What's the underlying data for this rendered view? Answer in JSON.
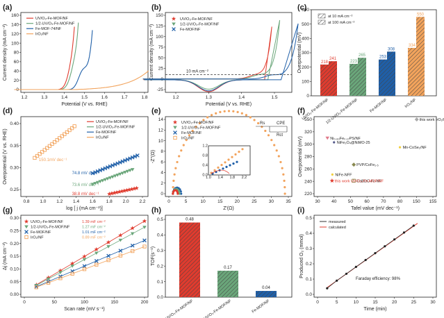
{
  "colors": {
    "red": "#e03b2e",
    "green": "#6aa67a",
    "blue": "#1f5fa8",
    "orange": "#f2a35c",
    "grey": "#aaaaaa",
    "gold": "#f2cf3b",
    "olive": "#8a8a52"
  },
  "panels": [
    {
      "label": "(a)",
      "type": "line",
      "xlabel": "Potential (V vs. RHE)",
      "ylabel": "Current density (mA cm⁻²)",
      "xticks": [
        "1.2",
        "1.3",
        "1.4",
        "1.5",
        "1.6",
        "1.7",
        "1.8"
      ],
      "yticks": [
        "0",
        "20",
        "40",
        "60",
        "80",
        "100",
        "120",
        "140",
        "160"
      ],
      "legend": [
        "UV/O₃-Fe-MOF/NF",
        "1/2-UV/O₃-Fe-MOF/NF",
        "Fe-MOF-74/NF",
        "IrO₂/NF"
      ]
    },
    {
      "label": "(b)",
      "type": "line",
      "xlabel": "Potential (V vs. RHE)",
      "ylabel": "Current density (mA cm⁻²)",
      "xticks": [
        "1.2",
        "1.3",
        "1.4",
        "1.5"
      ],
      "yticks": [
        "-25",
        "0",
        "25",
        "50",
        "75",
        "100",
        "125",
        "150"
      ],
      "legend": [
        "UV/O₃-Fe-MOF/NF",
        "1/2-UV/O₃-Fe-MOF/NF",
        "Fe-MOF/NF"
      ],
      "annotation": "10 mA cm⁻²"
    },
    {
      "label": "(c)",
      "type": "bar",
      "ylabel": "Overpotential (mV)",
      "categories": [
        "UV/O₃-Fe-MOF/NF",
        "1/2-UV/O₃-Fe-MOF/NF",
        "Fe-MOF/NF",
        "IrO₂/NF"
      ],
      "at10": [
        218,
        223,
        253,
        334
      ],
      "at100": [
        241,
        265,
        308,
        550
      ],
      "yticks": [
        "0",
        "100",
        "200",
        "300",
        "400",
        "500",
        "600"
      ],
      "legend": [
        "at 10 mA cm⁻²",
        "at 100 mA cm⁻²"
      ]
    },
    {
      "label": "(d)",
      "type": "tafel",
      "xlabel": "log [ j (mA cm⁻²)]",
      "ylabel": "Overpotential (V vs. RHE)",
      "xticks": [
        "0.8",
        "1.0",
        "1.2",
        "1.4",
        "1.6",
        "1.8",
        "2.0",
        "2.2"
      ],
      "yticks": [
        "0.25",
        "0.30",
        "0.35",
        "0.40"
      ],
      "legend": [
        "UV/O₃-Fe-MOF/NF",
        "1/2-UV/O₃-Fe-MOF/NF",
        "Fe-MOF/NF",
        "IrO₂/NF"
      ],
      "slopes": [
        "150.1mV dec⁻¹",
        "74.8 mV dec⁻¹",
        "73.6 mV dec⁻¹",
        "38.8 mV dec⁻¹"
      ]
    },
    {
      "label": "(e)",
      "type": "nyquist",
      "xlabel": "Z'(Ω)",
      "ylabel": "-Z''(Ω)",
      "xticks": [
        "0",
        "5",
        "10",
        "15",
        "20",
        "25",
        "30",
        "35"
      ],
      "yticks": [
        "0",
        "2",
        "4",
        "6",
        "8",
        "10",
        "12",
        "14"
      ],
      "legend": [
        "UV/O₃-Fe-MOF/NF",
        "1/2-UV/O₃-Fe-MOF/NF",
        "Fe-MOF/NF",
        "IrO₂/NF"
      ],
      "circuit": {
        "rs": "Rs",
        "cpe": "CPE",
        "rct": "Rct"
      },
      "inset": {
        "xticks": [
          "1.0",
          "1.2",
          "1.4",
          "1.6",
          "1.8",
          "2.0",
          "2.2",
          "2.4"
        ],
        "yticks": [
          "0.0",
          "0.2",
          "0.4",
          "0.6",
          "0.8",
          "1.0",
          "1.2"
        ]
      }
    },
    {
      "label": "(f)",
      "type": "scatter",
      "xlabel": "Tafel value (mV dec⁻¹)",
      "ylabel": "Overpotential (mV)",
      "xticks": [
        "30",
        "40",
        "50",
        "60",
        "70",
        "80",
        "150",
        "155"
      ],
      "yticks": [
        "220",
        "240",
        "260",
        "280",
        "300",
        "320",
        "550"
      ],
      "points": [
        {
          "name": "Ni₀.₈₃Fe₀.₁₇PS/NF",
          "x": 36,
          "y": 310
        },
        {
          "name": "NiFe₂O₄@NiMO-25",
          "x": 40,
          "y": 303
        },
        {
          "name": "Mn-CoSe₂/NF",
          "x": 80,
          "y": 295
        },
        {
          "name": "PVP/CoFe₁.₅",
          "x": 52,
          "y": 267
        },
        {
          "name": "NiFe-NFF",
          "x": 39,
          "y": 251
        },
        {
          "name": "CoBDC-Fc-NF",
          "x": 52,
          "y": 241
        },
        {
          "name": "this work UV/O₃-Fe-MOF/NF",
          "x": 38.8,
          "y": 241
        },
        {
          "name": "this work IrO₂/NF",
          "x": 150.1,
          "y": 550
        }
      ]
    },
    {
      "label": "(g)",
      "type": "line",
      "xlabel": "Scan rate (mV s⁻¹)",
      "ylabel": "Δj (mA cm⁻²)",
      "x": [
        20,
        40,
        60,
        80,
        100,
        120,
        140,
        160,
        180,
        200
      ],
      "xticks": [
        "0",
        "50",
        "100",
        "150",
        "200"
      ],
      "yticks": [
        "0.00",
        "0.05",
        "0.10",
        "0.15",
        "0.20",
        "0.25",
        "0.30"
      ],
      "legend": [
        "UV/O₃-Fe-MOF/NF",
        "1/2-UV/O₃-Fe-MOF/NF",
        "Fe-MOF/NF",
        "IrO₂/NF"
      ],
      "cdl": [
        "1.39 mF cm⁻²",
        "1.27 mF cm⁻²",
        "1.01 mF cm⁻²",
        "0.89 mF cm⁻²"
      ]
    },
    {
      "label": "(h)",
      "type": "bar",
      "ylabel": "TOF(s⁻¹)",
      "categories": [
        "UV/O₃-Fe-MOF/NF",
        "1/2-UV/O₃-Fe-MOF/NF",
        "Fe-MOF/NF"
      ],
      "values": [
        0.48,
        0.17,
        0.04
      ],
      "labels": [
        "0.48",
        "0.17",
        "0.04"
      ],
      "yticks": [
        "0.0",
        "0.1",
        "0.2",
        "0.3",
        "0.4",
        "0.5"
      ]
    },
    {
      "label": "(i)",
      "type": "line",
      "xlabel": "Time (min)",
      "ylabel": "Produced O₂ (mmol)",
      "x": [
        2.5,
        5,
        7.5,
        10,
        12.5,
        15,
        17.5,
        20,
        22.5,
        25
      ],
      "measured": [
        0.04,
        0.09,
        0.135,
        0.18,
        0.225,
        0.27,
        0.315,
        0.36,
        0.405,
        0.45
      ],
      "xticks": [
        "0",
        "5",
        "10",
        "15",
        "20",
        "25",
        "30"
      ],
      "yticks": [
        "0.0",
        "0.1",
        "0.2",
        "0.3",
        "0.4",
        "0.5"
      ],
      "legend": [
        "measured",
        "calculated"
      ],
      "faraday": "Faraday efficiency: 98%"
    }
  ]
}
